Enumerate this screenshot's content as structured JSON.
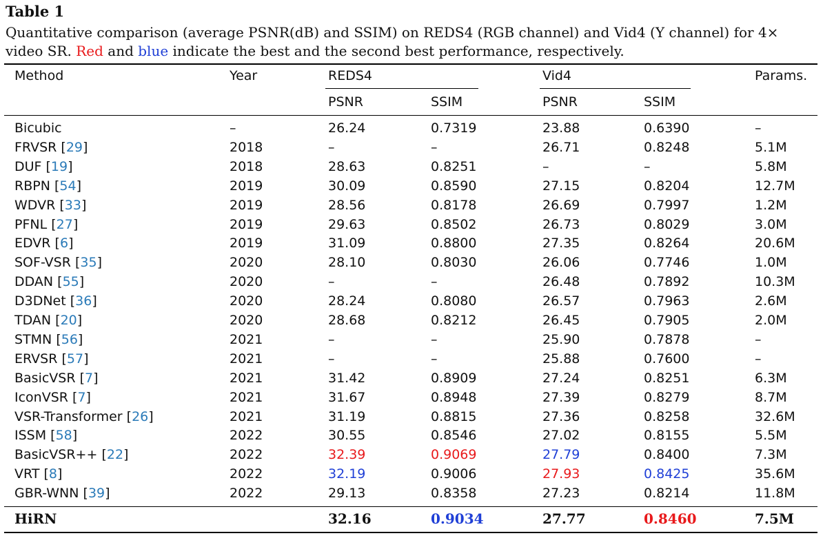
{
  "title": "Table 1",
  "caption": {
    "text_before": "Quantitative comparison (average PSNR(dB) and SSIM) on REDS4 (RGB channel) and Vid4 (Y channel) for 4× video SR. ",
    "red_word": "Red",
    "mid": " and ",
    "blue_word": "blue",
    "text_after": " indicate the best and the second best performance, respectively."
  },
  "colors": {
    "best": "#e8191b",
    "second": "#1f3fd6",
    "cite": "#2a7ab8"
  },
  "header": {
    "method": "Method",
    "year": "Year",
    "reds4": "REDS4",
    "vid4": "Vid4",
    "params": "Params.",
    "psnr": "PSNR",
    "ssim": "SSIM"
  },
  "rows": [
    {
      "method": "Bicubic",
      "ref": "",
      "year": "–",
      "reds_psnr": "26.24",
      "reds_ssim": "0.7319",
      "vid_psnr": "23.88",
      "vid_ssim": "0.6390",
      "params": "–"
    },
    {
      "method": "FRVSR",
      "ref": "29",
      "year": "2018",
      "reds_psnr": "–",
      "reds_ssim": "–",
      "vid_psnr": "26.71",
      "vid_ssim": "0.8248",
      "params": "5.1M"
    },
    {
      "method": "DUF",
      "ref": "19",
      "year": "2018",
      "reds_psnr": "28.63",
      "reds_ssim": "0.8251",
      "vid_psnr": "–",
      "vid_ssim": "–",
      "params": "5.8M"
    },
    {
      "method": "RBPN",
      "ref": "54",
      "year": "2019",
      "reds_psnr": "30.09",
      "reds_ssim": "0.8590",
      "vid_psnr": "27.15",
      "vid_ssim": "0.8204",
      "params": "12.7M"
    },
    {
      "method": "WDVR",
      "ref": "33",
      "year": "2019",
      "reds_psnr": "28.56",
      "reds_ssim": "0.8178",
      "vid_psnr": "26.69",
      "vid_ssim": "0.7997",
      "params": "1.2M"
    },
    {
      "method": "PFNL",
      "ref": "27",
      "year": "2019",
      "reds_psnr": "29.63",
      "reds_ssim": "0.8502",
      "vid_psnr": "26.73",
      "vid_ssim": "0.8029",
      "params": "3.0M"
    },
    {
      "method": "EDVR",
      "ref": "6",
      "year": "2019",
      "reds_psnr": "31.09",
      "reds_ssim": "0.8800",
      "vid_psnr": "27.35",
      "vid_ssim": "0.8264",
      "params": "20.6M"
    },
    {
      "method": "SOF-VSR",
      "ref": "35",
      "year": "2020",
      "reds_psnr": "28.10",
      "reds_ssim": "0.8030",
      "vid_psnr": "26.06",
      "vid_ssim": "0.7746",
      "params": "1.0M"
    },
    {
      "method": "DDAN",
      "ref": "55",
      "year": "2020",
      "reds_psnr": "–",
      "reds_ssim": "–",
      "vid_psnr": "26.48",
      "vid_ssim": "0.7892",
      "params": "10.3M"
    },
    {
      "method": "D3DNet",
      "ref": "36",
      "year": "2020",
      "reds_psnr": "28.24",
      "reds_ssim": "0.8080",
      "vid_psnr": "26.57",
      "vid_ssim": "0.7963",
      "params": "2.6M"
    },
    {
      "method": "TDAN",
      "ref": "20",
      "year": "2020",
      "reds_psnr": "28.68",
      "reds_ssim": "0.8212",
      "vid_psnr": "26.45",
      "vid_ssim": "0.7905",
      "params": "2.0M"
    },
    {
      "method": "STMN",
      "ref": "56",
      "year": "2021",
      "reds_psnr": "–",
      "reds_ssim": "–",
      "vid_psnr": "25.90",
      "vid_ssim": "0.7878",
      "params": "–"
    },
    {
      "method": "ERVSR",
      "ref": "57",
      "year": "2021",
      "reds_psnr": "–",
      "reds_ssim": "–",
      "vid_psnr": "25.88",
      "vid_ssim": "0.7600",
      "params": "–"
    },
    {
      "method": "BasicVSR",
      "ref": "7",
      "year": "2021",
      "reds_psnr": "31.42",
      "reds_ssim": "0.8909",
      "vid_psnr": "27.24",
      "vid_ssim": "0.8251",
      "params": "6.3M"
    },
    {
      "method": "IconVSR",
      "ref": "7",
      "year": "2021",
      "reds_psnr": "31.67",
      "reds_ssim": "0.8948",
      "vid_psnr": "27.39",
      "vid_ssim": "0.8279",
      "params": "8.7M"
    },
    {
      "method": "VSR-Transformer",
      "ref": "26",
      "year": "2021",
      "reds_psnr": "31.19",
      "reds_ssim": "0.8815",
      "vid_psnr": "27.36",
      "vid_ssim": "0.8258",
      "params": "32.6M"
    },
    {
      "method": "ISSM",
      "ref": "58",
      "year": "2022",
      "reds_psnr": "30.55",
      "reds_ssim": "0.8546",
      "vid_psnr": "27.02",
      "vid_ssim": "0.8155",
      "params": "5.5M"
    },
    {
      "method": "BasicVSR++",
      "ref": "22",
      "year": "2022",
      "reds_psnr": "32.39",
      "reds_ssim": "0.9069",
      "vid_psnr": "27.79",
      "vid_ssim": "0.8400",
      "params": "7.3M",
      "hl": {
        "reds_psnr": "best",
        "reds_ssim": "best",
        "vid_psnr": "second"
      }
    },
    {
      "method": "VRT",
      "ref": "8",
      "year": "2022",
      "reds_psnr": "32.19",
      "reds_ssim": "0.9006",
      "vid_psnr": "27.93",
      "vid_ssim": "0.8425",
      "params": "35.6M",
      "hl": {
        "reds_psnr": "second",
        "vid_psnr": "best",
        "vid_ssim": "second"
      }
    },
    {
      "method": "GBR-WNN",
      "ref": "39",
      "year": "2022",
      "reds_psnr": "29.13",
      "reds_ssim": "0.8358",
      "vid_psnr": "27.23",
      "vid_ssim": "0.8214",
      "params": "11.8M"
    }
  ],
  "final_row": {
    "method": "HiRN",
    "year": "",
    "reds_psnr": "32.16",
    "reds_ssim": "0.9034",
    "vid_psnr": "27.77",
    "vid_ssim": "0.8460",
    "params": "7.5M",
    "hl": {
      "reds_ssim": "second",
      "vid_ssim": "best"
    }
  }
}
